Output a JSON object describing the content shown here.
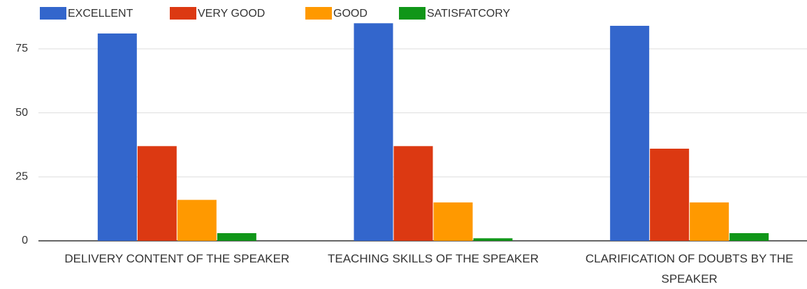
{
  "chart_data": {
    "type": "bar",
    "categories": [
      "DELIVERY CONTENT OF THE SPEAKER",
      "TEACHING SKILLS OF THE SPEAKER",
      "CLARIFICATION OF DOUBTS BY THE SPEAKER"
    ],
    "series": [
      {
        "name": "EXCELLENT",
        "color": "#3366cc",
        "values": [
          81,
          85,
          84
        ]
      },
      {
        "name": "VERY GOOD",
        "color": "#dc3912",
        "values": [
          37,
          37,
          36
        ]
      },
      {
        "name": "GOOD",
        "color": "#ff9900",
        "values": [
          16,
          15,
          15
        ]
      },
      {
        "name": "SATISFATCORY",
        "color": "#109618",
        "values": [
          3,
          1,
          3
        ]
      }
    ],
    "ylim": [
      0,
      85
    ],
    "yticks": [
      0,
      25,
      50,
      75
    ],
    "grid": true,
    "legend": "top"
  }
}
